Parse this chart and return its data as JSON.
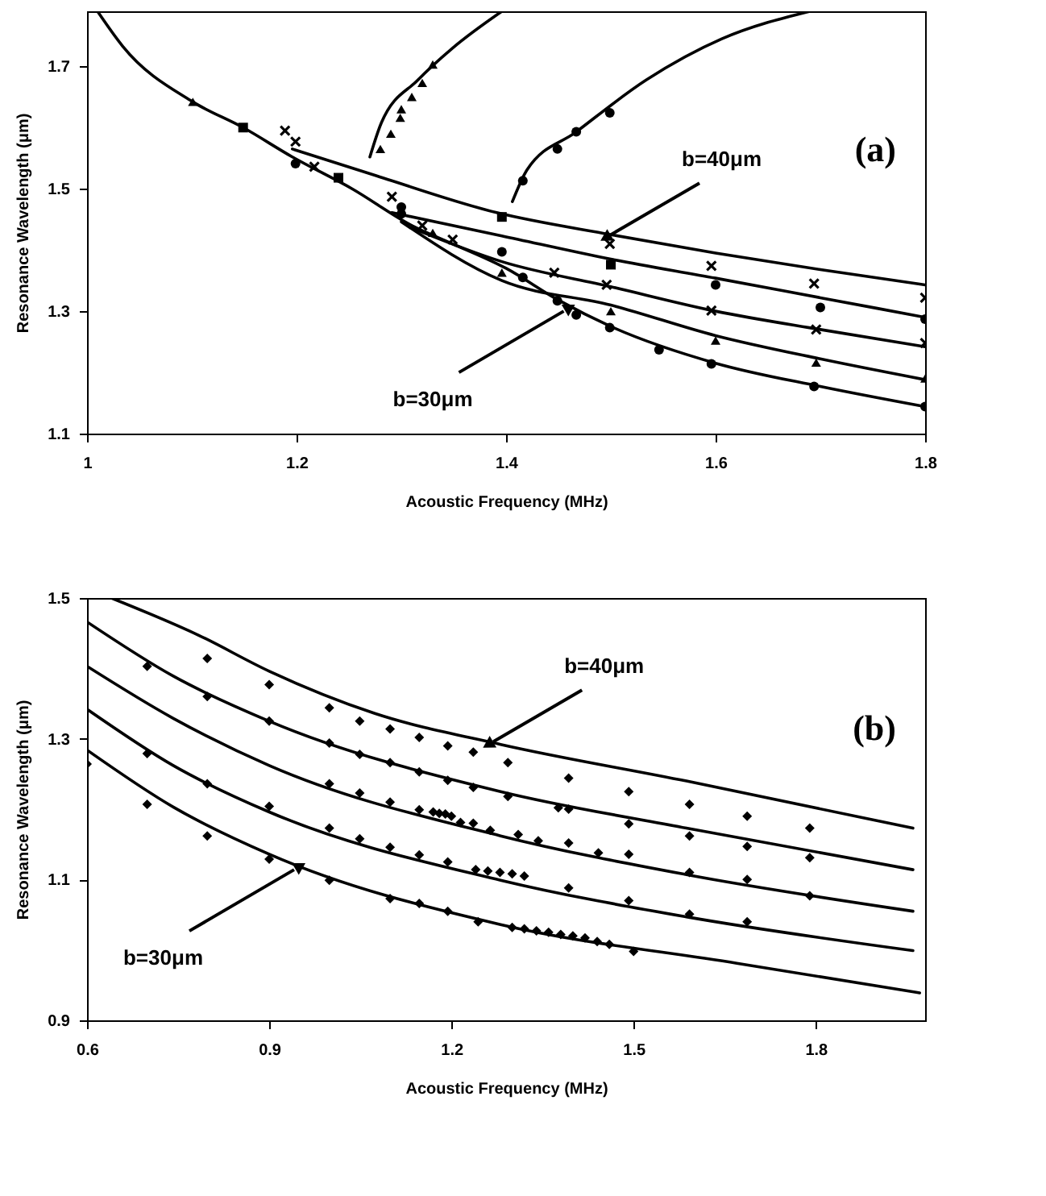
{
  "chart_data": [
    {
      "type": "line",
      "title": "(a)",
      "xlabel": "Acoustic Frequency (MHz)",
      "ylabel": "Resonance Wavelength (μm)",
      "xlim": [
        1,
        1.8
      ],
      "ylim": [
        1.1,
        1.79
      ],
      "xticks": [
        1,
        1.2,
        1.4,
        1.6,
        1.8
      ],
      "yticks": [
        1.1,
        1.3,
        1.5,
        1.7
      ],
      "series": [
        {
          "type": "line",
          "color": "#000000",
          "x": [
            1.196,
            1.273,
            1.391,
            1.5,
            1.6,
            1.7,
            1.8
          ],
          "values": [
            1.565,
            1.523,
            1.461,
            1.425,
            1.395,
            1.368,
            1.343
          ]
        },
        {
          "type": "line",
          "color": "#000000",
          "x": [
            1.291,
            1.396,
            1.5,
            1.6,
            1.7,
            1.8
          ],
          "values": [
            1.461,
            1.423,
            1.385,
            1.354,
            1.322,
            1.29
          ]
        },
        {
          "type": "line",
          "color": "#000000",
          "x": [
            1.31,
            1.396,
            1.5,
            1.6,
            1.7,
            1.8
          ],
          "values": [
            1.436,
            1.381,
            1.34,
            1.3,
            1.27,
            1.242
          ]
        },
        {
          "type": "line",
          "color": "#000000",
          "x": [
            1.3,
            1.396,
            1.5,
            1.6,
            1.7,
            1.8
          ],
          "values": [
            1.446,
            1.35,
            1.31,
            1.26,
            1.222,
            1.188
          ]
        },
        {
          "type": "line",
          "color": "#000000",
          "x": [
            1.01,
            1.034,
            1.101,
            1.149,
            1.196,
            1.253,
            1.31,
            1.349,
            1.4,
            1.45,
            1.5,
            1.6,
            1.7,
            1.8
          ],
          "values": [
            1.79,
            1.733,
            1.642,
            1.6,
            1.552,
            1.5,
            1.44,
            1.41,
            1.37,
            1.318,
            1.275,
            1.215,
            1.177,
            1.144
          ]
        },
        {
          "type": "line",
          "color": "#000000",
          "x": [
            1.27,
            1.281,
            1.316,
            1.349,
            1.396
          ],
          "values": [
            1.552,
            1.608,
            1.678,
            1.73,
            1.79
          ]
        },
        {
          "type": "line",
          "color": "#000000",
          "x": [
            1.406,
            1.42,
            1.467,
            1.534,
            1.606,
            1.69
          ],
          "values": [
            1.479,
            1.531,
            1.593,
            1.678,
            1.745,
            1.79
          ]
        },
        {
          "type": "scatter",
          "marker": "square",
          "color": "#000000",
          "x": [
            1.149,
            1.24,
            1.396,
            1.5
          ],
          "values": [
            1.6,
            1.518,
            1.454,
            1.376
          ]
        },
        {
          "type": "scatter",
          "marker": "cross",
          "color": "#000000",
          "x": [
            1.189,
            1.199,
            1.217,
            1.291,
            1.32,
            1.349,
            1.446,
            1.496,
            1.499,
            1.596,
            1.596,
            1.694,
            1.696,
            1.8,
            1.8
          ],
          "values": [
            1.595,
            1.577,
            1.536,
            1.487,
            1.44,
            1.417,
            1.363,
            1.343,
            1.41,
            1.374,
            1.301,
            1.345,
            1.27,
            1.322,
            1.248
          ]
        },
        {
          "type": "scatter",
          "marker": "triangle",
          "color": "#000000",
          "x": [
            1.101,
            1.33,
            1.396,
            1.5,
            1.6,
            1.696,
            1.8,
            1.28,
            1.29,
            1.299,
            1.3,
            1.31,
            1.32,
            1.33
          ],
          "values": [
            1.642,
            1.428,
            1.363,
            1.3,
            1.252,
            1.216,
            1.19,
            1.565,
            1.59,
            1.616,
            1.63,
            1.65,
            1.673,
            1.703
          ]
        },
        {
          "type": "scatter",
          "marker": "circle",
          "color": "#000000",
          "x": [
            1.199,
            1.3,
            1.3,
            1.396,
            1.416,
            1.449,
            1.467,
            1.499,
            1.546,
            1.596,
            1.694,
            1.8,
            1.6,
            1.7,
            1.8,
            1.416,
            1.449,
            1.467,
            1.499
          ],
          "values": [
            1.541,
            1.47,
            1.459,
            1.397,
            1.355,
            1.317,
            1.294,
            1.273,
            1.237,
            1.214,
            1.177,
            1.144,
            1.343,
            1.306,
            1.287,
            1.513,
            1.565,
            1.593,
            1.624
          ]
        }
      ],
      "annotations": [
        {
          "text": "b=40μm",
          "x": 1.5,
          "y": 1.425
        },
        {
          "text": "b=30μm",
          "x": 1.455,
          "y": 1.3
        }
      ]
    },
    {
      "type": "line",
      "title": "(b)",
      "xlabel": "Acoustic Frequency (MHz)",
      "ylabel": "Resonance Wavelength (μm)",
      "xlim": [
        0.6,
        1.98
      ],
      "ylim": [
        0.9,
        1.5
      ],
      "xticks": [
        0.6,
        0.9,
        1.2,
        1.5,
        1.8
      ],
      "yticks": [
        0.9,
        1.1,
        1.3,
        1.5
      ],
      "series": [
        {
          "type": "line",
          "color": "#000000",
          "x": [
            0.64,
            0.784,
            0.9,
            1.074,
            1.281,
            1.587,
            1.96
          ],
          "values": [
            1.5,
            1.447,
            1.396,
            1.336,
            1.292,
            1.24,
            1.173
          ]
        },
        {
          "type": "line",
          "color": "#000000",
          "x": [
            0.6,
            0.742,
            0.9,
            1.281,
            1.587,
            1.96
          ],
          "values": [
            1.466,
            1.389,
            1.325,
            1.225,
            1.173,
            1.114
          ]
        },
        {
          "type": "line",
          "color": "#000000",
          "x": [
            0.6,
            0.742,
            0.9,
            1.281,
            1.587,
            1.96
          ],
          "values": [
            1.403,
            1.329,
            1.262,
            1.162,
            1.107,
            1.055
          ]
        },
        {
          "type": "line",
          "color": "#000000",
          "x": [
            0.6,
            0.742,
            0.9,
            1.281,
            1.587,
            1.96
          ],
          "values": [
            1.342,
            1.262,
            1.196,
            1.099,
            1.047,
            0.999
          ]
        },
        {
          "type": "line",
          "color": "#000000",
          "x": [
            0.6,
            0.742,
            0.9,
            1.281,
            1.67,
            1.971
          ],
          "values": [
            1.284,
            1.203,
            1.136,
            1.036,
            0.981,
            0.939
          ]
        },
        {
          "type": "scatter",
          "marker": "diamond",
          "color": "#000000",
          "x": [
            0.798,
            0.9,
            0.999,
            1.049,
            1.099,
            1.147,
            1.194,
            1.236,
            1.293,
            1.393,
            1.492,
            1.592,
            1.687,
            1.79,
            0.699,
            0.798,
            0.9,
            0.999,
            1.049,
            1.099,
            1.147,
            1.194,
            1.236,
            1.293,
            1.376,
            1.393,
            1.492,
            1.592,
            1.687,
            1.79,
            0.999,
            1.049,
            1.099,
            1.147,
            1.17,
            1.18,
            1.19,
            1.2,
            1.215,
            1.236,
            1.264,
            1.31,
            1.343,
            1.393,
            1.442,
            1.492,
            1.592,
            1.687,
            1.79,
            0.699,
            0.798,
            0.9,
            0.999,
            1.049,
            1.099,
            1.147,
            1.194,
            1.24,
            1.26,
            1.28,
            1.3,
            1.32,
            1.393,
            1.492,
            1.592,
            1.687,
            0.6,
            0.699,
            0.798,
            0.9,
            0.999,
            1.099,
            1.147,
            1.194,
            1.244,
            1.3,
            1.32,
            1.34,
            1.36,
            1.38,
            1.4,
            1.42,
            1.44,
            1.46,
            1.5
          ],
          "values": [
            1.414,
            1.377,
            1.344,
            1.325,
            1.314,
            1.302,
            1.29,
            1.281,
            1.266,
            1.244,
            1.225,
            1.207,
            1.19,
            1.173,
            1.403,
            1.36,
            1.325,
            1.294,
            1.278,
            1.266,
            1.253,
            1.241,
            1.231,
            1.218,
            1.202,
            1.2,
            1.179,
            1.162,
            1.147,
            1.131,
            1.236,
            1.223,
            1.21,
            1.199,
            1.196,
            1.194,
            1.193,
            1.19,
            1.181,
            1.18,
            1.17,
            1.164,
            1.155,
            1.152,
            1.138,
            1.136,
            1.11,
            1.1,
            1.077,
            1.279,
            1.236,
            1.204,
            1.173,
            1.158,
            1.146,
            1.135,
            1.125,
            1.114,
            1.112,
            1.11,
            1.108,
            1.105,
            1.088,
            1.07,
            1.051,
            1.04,
            1.264,
            1.207,
            1.162,
            1.129,
            1.099,
            1.073,
            1.066,
            1.055,
            1.04,
            1.032,
            1.03,
            1.027,
            1.025,
            1.022,
            1.02,
            1.017,
            1.012,
            1.008,
            0.998
          ]
        }
      ],
      "annotations": [
        {
          "text": "b=40μm",
          "x": 1.269,
          "y": 1.296
        },
        {
          "text": "b=30μm",
          "x": 0.941,
          "y": 1.114
        }
      ]
    }
  ]
}
